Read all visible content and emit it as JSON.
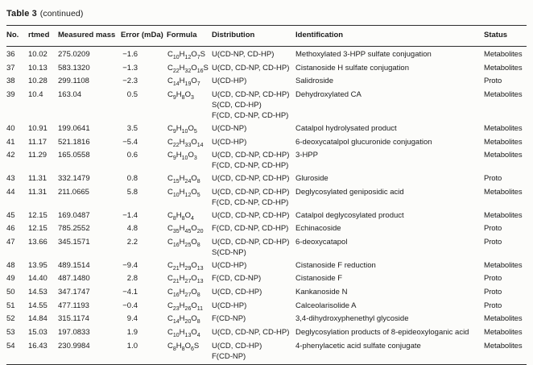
{
  "colors": {
    "background": "#fcfcfa",
    "text": "#1b1b1b",
    "rule": "#2e2e2e"
  },
  "title": {
    "label": "Table 3",
    "note": "(continued)"
  },
  "table": {
    "columns": [
      "No.",
      "rtmed",
      "Measured mass",
      "Error (mDa)",
      "Formula",
      "Distribution",
      "Identification",
      "Status"
    ],
    "rows": [
      {
        "no": "36",
        "rtmed": "10.02",
        "mass": "275.0209",
        "error": "−1.6",
        "formula": "C10H12O7S",
        "distribution": [
          "U(CD-NP, CD-HP)"
        ],
        "identification": "Methoxylated 3-HPP sulfate conjugation",
        "status": "Metabolites"
      },
      {
        "no": "37",
        "rtmed": "10.13",
        "mass": "583.1320",
        "error": "−1.3",
        "formula": "C22H32O16S",
        "distribution": [
          "U(CD, CD-NP, CD-HP)"
        ],
        "identification": "Cistanoside H sulfate conjugation",
        "status": "Metabolites"
      },
      {
        "no": "38",
        "rtmed": "10.28",
        "mass": "299.1108",
        "error": "−2.3",
        "formula": "C14H19O7",
        "distribution": [
          "U(CD-HP)"
        ],
        "identification": "Salidroside",
        "status": "Proto"
      },
      {
        "no": "39",
        "rtmed": "10.4",
        "mass": "163.04",
        "error": "0.5",
        "formula": "C9H8O3",
        "distribution": [
          "U(CD, CD-NP, CD-HP)",
          "S(CD, CD-HP)",
          "F(CD, CD-NP, CD-HP)"
        ],
        "identification": "Dehydroxylated CA",
        "status": "Metabolites"
      },
      {
        "no": "40",
        "rtmed": "10.91",
        "mass": "199.0641",
        "error": "3.5",
        "formula": "C9H10O5",
        "distribution": [
          "U(CD-NP)"
        ],
        "identification": "Catalpol hydrolysated product",
        "status": "Metabolites"
      },
      {
        "no": "41",
        "rtmed": "11.17",
        "mass": "521.1816",
        "error": "−5.4",
        "formula": "C22H33O14",
        "distribution": [
          "U(CD-HP)"
        ],
        "identification": "6-deoxycatalpol glucuronide conjugation",
        "status": "Metabolites"
      },
      {
        "no": "42",
        "rtmed": "11.29",
        "mass": "165.0558",
        "error": "0.6",
        "formula": "C9H10O3",
        "distribution": [
          "U(CD, CD-NP, CD-HP)",
          "F(CD, CD-NP, CD-HP)"
        ],
        "identification": "3-HPP",
        "status": "Metabolites"
      },
      {
        "no": "43",
        "rtmed": "11.31",
        "mass": "332.1479",
        "error": "0.8",
        "formula": "C15H24O8",
        "distribution": [
          "U(CD, CD-NP, CD-HP)"
        ],
        "identification": "Gluroside",
        "status": "Proto"
      },
      {
        "no": "44",
        "rtmed": "11.31",
        "mass": "211.0665",
        "error": "5.8",
        "formula": "C10H12O5",
        "distribution": [
          "U(CD, CD-NP, CD-HP)",
          "F(CD, CD-NP, CD-HP)"
        ],
        "identification": "Deglycosylated geniposidic acid",
        "status": "Metabolites"
      },
      {
        "no": "45",
        "rtmed": "12.15",
        "mass": "169.0487",
        "error": "−1.4",
        "formula": "C8H8O4",
        "distribution": [
          "U(CD, CD-NP, CD-HP)"
        ],
        "identification": "Catalpol deglycosylated product",
        "status": "Metabolites"
      },
      {
        "no": "46",
        "rtmed": "12.15",
        "mass": "785.2552",
        "error": "4.8",
        "formula": "C35H45O20",
        "distribution": [
          "F(CD, CD-NP, CD-HP)"
        ],
        "identification": "Echinacoside",
        "status": "Proto"
      },
      {
        "no": "47",
        "rtmed": "13.66",
        "mass": "345.1571",
        "error": "2.2",
        "formula": "C16H25O8",
        "distribution": [
          "U(CD, CD-NP, CD-HP)",
          "S(CD-NP)"
        ],
        "identification": "6-deoxycatapol",
        "status": "Proto"
      },
      {
        "no": "48",
        "rtmed": "13.95",
        "mass": "489.1514",
        "error": "−9.4",
        "formula": "C21H29O13",
        "distribution": [
          "U(CD-HP)"
        ],
        "identification": "Cistanoside F reduction",
        "status": "Metabolites"
      },
      {
        "no": "49",
        "rtmed": "14.40",
        "mass": "487.1480",
        "error": "2.8",
        "formula": "C21H27O13",
        "distribution": [
          "F(CD, CD-NP)"
        ],
        "identification": "Cistanoside F",
        "status": "Proto"
      },
      {
        "no": "50",
        "rtmed": "14.53",
        "mass": "347.1747",
        "error": "−4.1",
        "formula": "C16H27O8",
        "distribution": [
          "U(CD, CD-HP)"
        ],
        "identification": "Kankanoside N",
        "status": "Proto"
      },
      {
        "no": "51",
        "rtmed": "14.55",
        "mass": "477.1193",
        "error": "−0.4",
        "formula": "C23H26O11",
        "distribution": [
          "U(CD-HP)"
        ],
        "identification": "Calceolarisolide A",
        "status": "Proto"
      },
      {
        "no": "52",
        "rtmed": "14.84",
        "mass": "315.1174",
        "error": "9.4",
        "formula": "C14H20O8",
        "distribution": [
          "F(CD-NP)"
        ],
        "identification": "3,4-dihydroxyphenethyl glycoside",
        "status": "Metabolites"
      },
      {
        "no": "53",
        "rtmed": "15.03",
        "mass": "197.0833",
        "error": "1.9",
        "formula": "C10H13O4",
        "distribution": [
          "U(CD, CD-NP, CD-HP)"
        ],
        "identification": "Deglycosylation products of 8-epideoxyloganic acid",
        "status": "Metabolites"
      },
      {
        "no": "54",
        "rtmed": "16.43",
        "mass": "230.9984",
        "error": "1.0",
        "formula": "C8H8O6S",
        "distribution": [
          "U(CD, CD-HP)",
          "F(CD-NP)"
        ],
        "identification": "4-phenylacetic acid sulfate conjugate",
        "status": "Metabolites"
      }
    ]
  }
}
